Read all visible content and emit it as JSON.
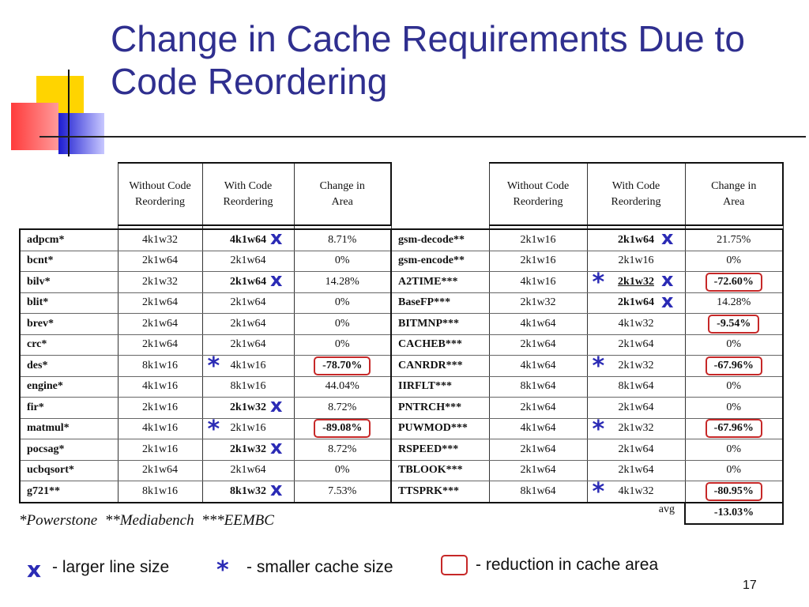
{
  "title": "Change in Cache Requirements Due to Code Reordering",
  "columns": {
    "without": "Without Code Reordering",
    "with": "With Code Reordering",
    "change": "Change in Area"
  },
  "left_rows": [
    {
      "name": "adpcm*",
      "without": "4k1w32",
      "with": "4k1w64",
      "change": "8.71%",
      "with_bold": true,
      "mark_x": true,
      "mark_star": false,
      "circled": false
    },
    {
      "name": "bcnt*",
      "without": "2k1w64",
      "with": "2k1w64",
      "change": "0%",
      "with_bold": false,
      "mark_x": false,
      "mark_star": false,
      "circled": false
    },
    {
      "name": "bilv*",
      "without": "2k1w32",
      "with": "2k1w64",
      "change": "14.28%",
      "with_bold": true,
      "mark_x": true,
      "mark_star": false,
      "circled": false
    },
    {
      "name": "blit*",
      "without": "2k1w64",
      "with": "2k1w64",
      "change": "0%",
      "with_bold": false,
      "mark_x": false,
      "mark_star": false,
      "circled": false
    },
    {
      "name": "brev*",
      "without": "2k1w64",
      "with": "2k1w64",
      "change": "0%",
      "with_bold": false,
      "mark_x": false,
      "mark_star": false,
      "circled": false
    },
    {
      "name": "crc*",
      "without": "2k1w64",
      "with": "2k1w64",
      "change": "0%",
      "with_bold": false,
      "mark_x": false,
      "mark_star": false,
      "circled": false
    },
    {
      "name": "des*",
      "without": "8k1w16",
      "with": "4k1w16",
      "change": "-78.70%",
      "with_bold": false,
      "mark_x": false,
      "mark_star": true,
      "circled": true
    },
    {
      "name": "engine*",
      "without": "4k1w16",
      "with": "8k1w16",
      "change": "44.04%",
      "with_bold": false,
      "mark_x": false,
      "mark_star": false,
      "circled": false
    },
    {
      "name": "fir*",
      "without": "2k1w16",
      "with": "2k1w32",
      "change": "8.72%",
      "with_bold": true,
      "mark_x": true,
      "mark_star": false,
      "circled": false
    },
    {
      "name": "matmul*",
      "without": "4k1w16",
      "with": "2k1w16",
      "change": "-89.08%",
      "with_bold": false,
      "mark_x": false,
      "mark_star": true,
      "circled": true
    },
    {
      "name": "pocsag*",
      "without": "2k1w16",
      "with": "2k1w32",
      "change": "8.72%",
      "with_bold": true,
      "mark_x": true,
      "mark_star": false,
      "circled": false
    },
    {
      "name": "ucbqsort*",
      "without": "2k1w64",
      "with": "2k1w64",
      "change": "0%",
      "with_bold": false,
      "mark_x": false,
      "mark_star": false,
      "circled": false
    },
    {
      "name": "g721**",
      "without": "8k1w16",
      "with": "8k1w32",
      "change": "7.53%",
      "with_bold": true,
      "mark_x": true,
      "mark_star": false,
      "circled": false
    }
  ],
  "right_rows": [
    {
      "name": "gsm-decode**",
      "without": "2k1w16",
      "with": "2k1w64",
      "change": "21.75%",
      "with_bold": true,
      "mark_x": true,
      "mark_star": false,
      "circled": false
    },
    {
      "name": "gsm-encode**",
      "without": "2k1w16",
      "with": "2k1w16",
      "change": "0%",
      "with_bold": false,
      "mark_x": false,
      "mark_star": false,
      "circled": false
    },
    {
      "name": "A2TIME***",
      "without": "4k1w16",
      "with": "2k1w32",
      "change": "-72.60%",
      "with_bold": true,
      "mark_x": true,
      "mark_star": true,
      "circled": true
    },
    {
      "name": "BaseFP***",
      "without": "2k1w32",
      "with": "2k1w64",
      "change": "14.28%",
      "with_bold": true,
      "mark_x": true,
      "mark_star": false,
      "circled": false
    },
    {
      "name": "BITMNP***",
      "without": "4k1w64",
      "with": "4k1w32",
      "change": "-9.54%",
      "with_bold": false,
      "mark_x": false,
      "mark_star": false,
      "circled": true
    },
    {
      "name": "CACHEB***",
      "without": "2k1w64",
      "with": "2k1w64",
      "change": "0%",
      "with_bold": false,
      "mark_x": false,
      "mark_star": false,
      "circled": false
    },
    {
      "name": "CANRDR***",
      "without": "4k1w64",
      "with": "2k1w32",
      "change": "-67.96%",
      "with_bold": false,
      "mark_x": false,
      "mark_star": true,
      "circled": true
    },
    {
      "name": "IIRFLT***",
      "without": "8k1w64",
      "with": "8k1w64",
      "change": "0%",
      "with_bold": false,
      "mark_x": false,
      "mark_star": false,
      "circled": false
    },
    {
      "name": "PNTRCH***",
      "without": "2k1w64",
      "with": "2k1w64",
      "change": "0%",
      "with_bold": false,
      "mark_x": false,
      "mark_star": false,
      "circled": false
    },
    {
      "name": "PUWMOD***",
      "without": "4k1w64",
      "with": "2k1w32",
      "change": "-67.96%",
      "with_bold": false,
      "mark_x": false,
      "mark_star": true,
      "circled": true
    },
    {
      "name": "RSPEED***",
      "without": "2k1w64",
      "with": "2k1w64",
      "change": "0%",
      "with_bold": false,
      "mark_x": false,
      "mark_star": false,
      "circled": false
    },
    {
      "name": "TBLOOK***",
      "without": "2k1w64",
      "with": "2k1w64",
      "change": "0%",
      "with_bold": false,
      "mark_x": false,
      "mark_star": false,
      "circled": false
    },
    {
      "name": "TTSPRK***",
      "without": "8k1w64",
      "with": "4k1w32",
      "change": "-80.95%",
      "with_bold": false,
      "mark_x": false,
      "mark_star": true,
      "circled": true
    }
  ],
  "avg": {
    "label": "avg",
    "value": "-13.03%"
  },
  "footnote": "*Powerstone  **Mediabench  ***EEMBC",
  "legend": {
    "x_symbol": "x",
    "x_text": "- larger line size",
    "star_symbol": "*",
    "star_text": "- smaller cache size",
    "box_text": "- reduction in cache area"
  },
  "page_number": "17",
  "colors": {
    "title": "#2f2f8f",
    "marks": "#2b2bb5",
    "circle": "#c62828"
  }
}
